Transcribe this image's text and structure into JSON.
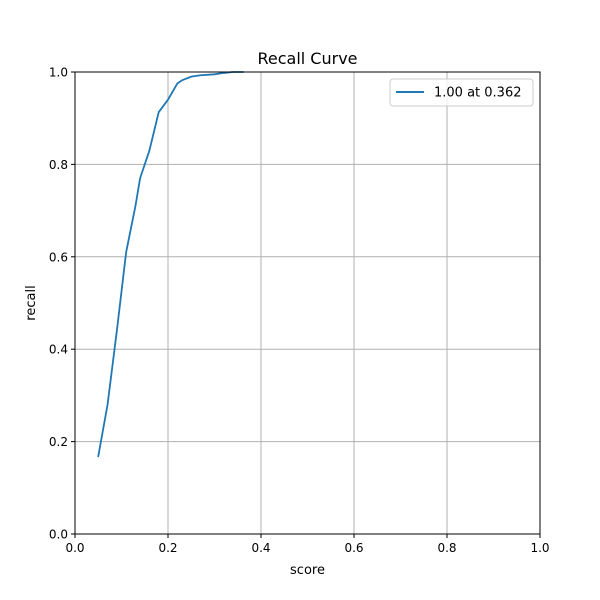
{
  "chart_data": {
    "type": "line",
    "title": "Recall Curve",
    "xlabel": "score",
    "ylabel": "recall",
    "xlim": [
      0.0,
      1.0
    ],
    "ylim": [
      0.0,
      1.0
    ],
    "xticks": [
      "0.0",
      "0.2",
      "0.4",
      "0.6",
      "0.8",
      "1.0"
    ],
    "yticks": [
      "0.0",
      "0.2",
      "0.4",
      "0.6",
      "0.8",
      "1.0"
    ],
    "grid": true,
    "legend_position": "top-right",
    "series": [
      {
        "name": "1.00 at 0.362",
        "color": "#1f77b4",
        "x": [
          0.05,
          0.07,
          0.09,
          0.11,
          0.12,
          0.13,
          0.14,
          0.16,
          0.18,
          0.2,
          0.22,
          0.23,
          0.25,
          0.27,
          0.3,
          0.32,
          0.34,
          0.362
        ],
        "y": [
          0.168,
          0.28,
          0.44,
          0.61,
          0.66,
          0.71,
          0.77,
          0.83,
          0.913,
          0.94,
          0.975,
          0.982,
          0.99,
          0.993,
          0.995,
          0.998,
          1.0,
          1.0
        ]
      }
    ]
  }
}
